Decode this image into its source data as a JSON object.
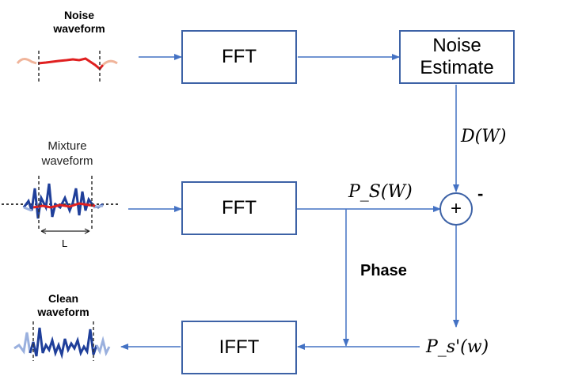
{
  "waveforms": {
    "noise_title": [
      "Noise",
      "waveform"
    ],
    "mixture_title": [
      "Mixture",
      "waveform"
    ],
    "mixture_window_label": "L",
    "clean_title": [
      "Clean",
      "waveform"
    ]
  },
  "blocks": {
    "fft_top": "FFT",
    "noise_estimate": [
      "Noise",
      "Estimate"
    ],
    "fft_mid": "FFT",
    "ifft": "IFFT"
  },
  "signals": {
    "noise_spectrum": "D(W)",
    "mixture_spectrum": "P_S(W)",
    "phase": "Phase",
    "clean_spectrum": "P_s'(w)",
    "sum_symbol": "+",
    "subtract_sign": "-"
  },
  "colors": {
    "block_border": "#3d62a6",
    "arrow": "#4472c4",
    "noise_trace": "#e02020",
    "signal_trace": "#1f3f9a"
  }
}
